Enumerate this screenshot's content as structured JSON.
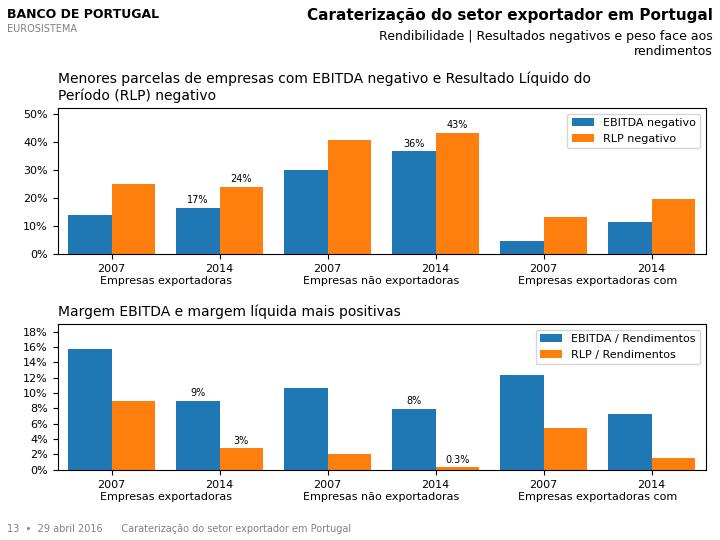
{
  "title": "Caraterização do setor exportador em Portugal",
  "subtitle": "Rendibilidade | Resultados negativos e peso face aos\nrendimentos",
  "header_annotations": [
    "BANCO DE PORTUGAL",
    "EUROSISTEMA"
  ],
  "footer": "13  •  29 abril 2016      Caraterização do setor exportador em Portugal",
  "chart_data": [
    {
      "type": "bar",
      "title": "Menores parcelas de empresas com EBITDA negativo e Resultado Líquido do\nPeríodo (RLP) negativo",
      "categories": [
        "2007",
        "2014",
        "2007",
        "2014",
        "2007",
        "2014"
      ],
      "category_groups": [
        "Empresas exportadoras",
        "Empresas não exportadoras",
        "Empresas exportadoras com"
      ],
      "series": [
        {
          "name": "EBITDA negativo",
          "values": [
            0.14,
            0.165,
            0.3,
            0.365,
            0.047,
            0.115
          ],
          "value_labels": [
            null,
            "17%",
            null,
            "36%",
            null,
            null
          ]
        },
        {
          "name": "RLP negativo",
          "values": [
            0.25,
            0.24,
            0.405,
            0.43,
            0.132,
            0.197
          ],
          "value_labels": [
            null,
            "24%",
            null,
            "43%",
            null,
            null
          ]
        }
      ],
      "ylim": [
        0,
        0.52
      ],
      "yticks": [
        {
          "value": 0.0,
          "label": "0%"
        },
        {
          "value": 0.1,
          "label": "10%"
        },
        {
          "value": 0.2,
          "label": "20%"
        },
        {
          "value": 0.3,
          "label": "30%"
        },
        {
          "value": 0.4,
          "label": "40%"
        },
        {
          "value": 0.5,
          "label": "50%"
        }
      ],
      "legend": "upper right"
    },
    {
      "type": "bar",
      "title": "Margem EBITDA e margem líquida mais positivas",
      "categories": [
        "2007",
        "2014",
        "2007",
        "2014",
        "2007",
        "2014"
      ],
      "category_groups": [
        "Empresas exportadoras",
        "Empresas não exportadoras",
        "Empresas exportadoras com"
      ],
      "series": [
        {
          "name": "EBITDA / Rendimentos",
          "values": [
            0.157,
            0.09,
            0.106,
            0.079,
            0.124,
            0.073
          ],
          "value_labels": [
            null,
            "9%",
            null,
            "8%",
            null,
            null
          ]
        },
        {
          "name": "RLP / Rendimentos",
          "values": [
            0.09,
            0.028,
            0.021,
            0.003,
            0.055,
            0.016
          ],
          "value_labels": [
            null,
            "3%",
            null,
            "0.3%",
            null,
            null
          ]
        }
      ],
      "ylim": [
        0,
        0.19
      ],
      "yticks": [
        {
          "value": 0.0,
          "label": "0%"
        },
        {
          "value": 0.02,
          "label": "2%"
        },
        {
          "value": 0.04,
          "label": "4%"
        },
        {
          "value": 0.06,
          "label": "6%"
        },
        {
          "value": 0.08,
          "label": "8%"
        },
        {
          "value": 0.1,
          "label": "10%"
        },
        {
          "value": 0.12,
          "label": "12%"
        },
        {
          "value": 0.14,
          "label": "14%"
        },
        {
          "value": 0.16,
          "label": "16%"
        },
        {
          "value": 0.18,
          "label": "18%"
        }
      ],
      "legend": "upper right"
    }
  ]
}
